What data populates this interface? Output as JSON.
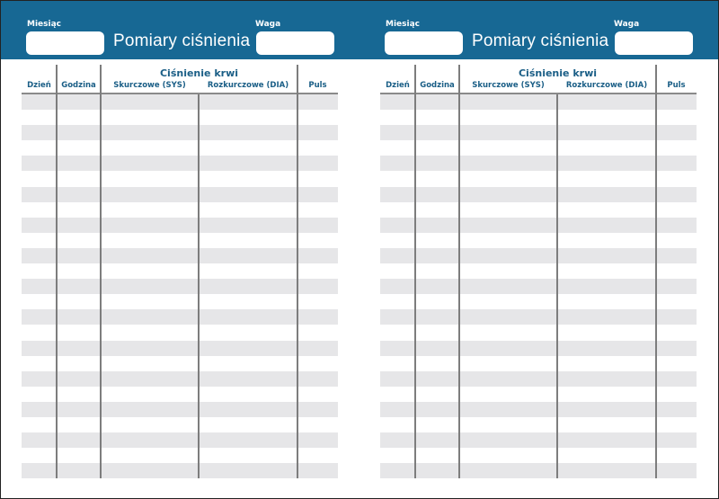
{
  "pages": [
    {
      "month_label": "Miesiąc",
      "weight_label": "Waga",
      "title": "Pomiary ciśnienia",
      "group_header": "Ciśnienie krwi",
      "columns": [
        "Dzień",
        "Godzina",
        "Skurczowe (SYS)",
        "Rozkurczowe (DIA)",
        "Puls"
      ]
    },
    {
      "month_label": "Miesiąc",
      "weight_label": "Waga",
      "title": "Pomiary ciśnienia",
      "group_header": "Ciśnienie krwi",
      "columns": [
        "Dzień",
        "Godzina",
        "Skurczowe (SYS)",
        "Rozkurczowe (DIA)",
        "Puls"
      ]
    }
  ],
  "colors": {
    "header": "#176894",
    "header_text": "#1a5e86",
    "stripe": "#e6e6e8",
    "rule": "#7d7d7d"
  }
}
